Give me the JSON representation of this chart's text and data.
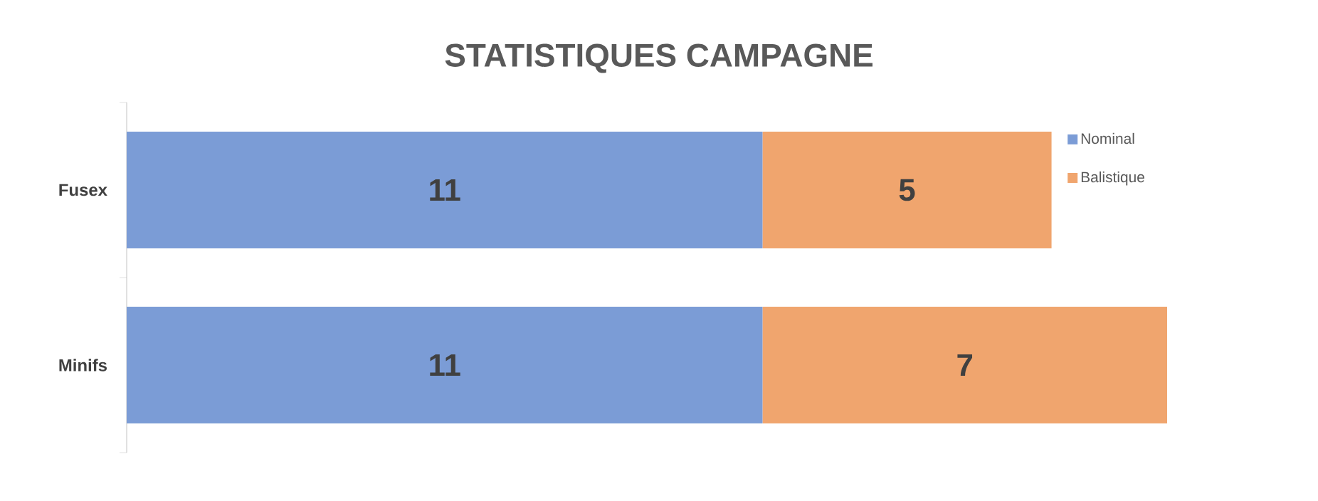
{
  "chart_data": {
    "type": "bar",
    "title": "STATISTIQUES CAMPAGNE",
    "orientation": "horizontal",
    "stacked": true,
    "categories": [
      "Fusex",
      "Minifs"
    ],
    "series": [
      {
        "name": "Nominal",
        "color": "#7b9cd6",
        "values": [
          11,
          11
        ]
      },
      {
        "name": "Balistique",
        "color": "#f0a56e",
        "values": [
          5,
          7
        ]
      }
    ],
    "data_labels": true,
    "legend": "top right"
  }
}
